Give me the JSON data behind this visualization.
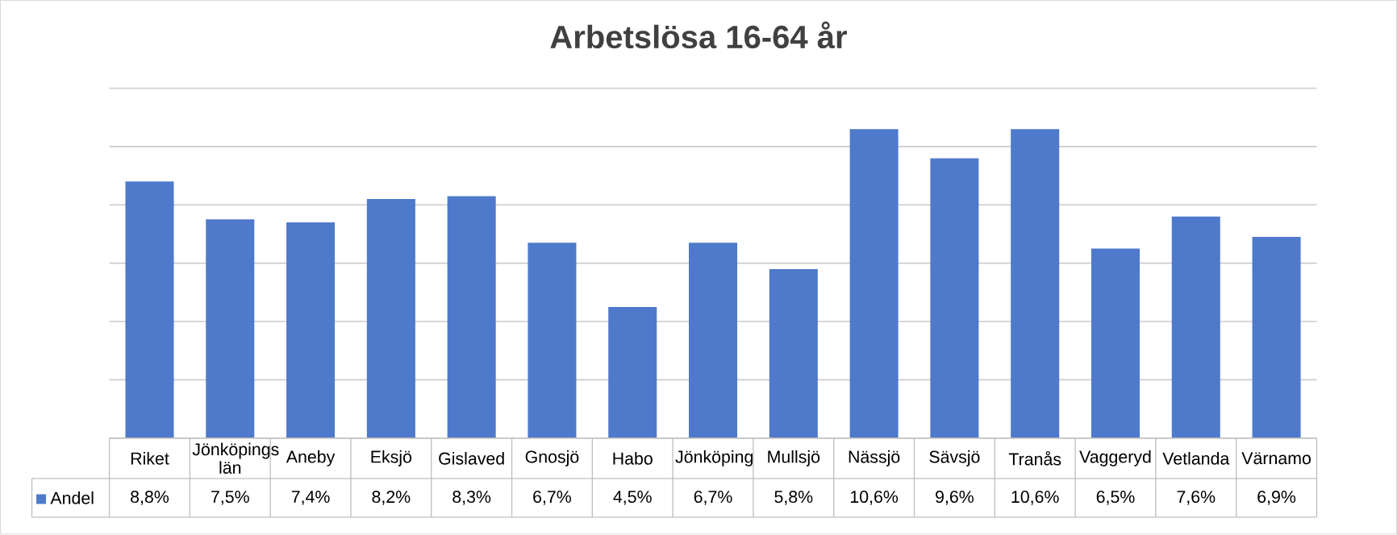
{
  "chart_data": {
    "type": "bar",
    "title": "Arbetslösa 16-64 år",
    "categories": [
      "Riket",
      "Jönköpings län",
      "Aneby",
      "Eksjö",
      "Gislaved",
      "Gnosjö",
      "Habo",
      "Jönköping",
      "Mullsjö",
      "Nässjö",
      "Sävsjö",
      "Tranås",
      "Vaggeryd",
      "Vetlanda",
      "Värnamo"
    ],
    "series": [
      {
        "name": "Andel",
        "color": "#4f7acb",
        "values": [
          8.8,
          7.5,
          7.4,
          8.2,
          8.3,
          6.7,
          4.5,
          6.7,
          5.8,
          10.6,
          9.6,
          10.6,
          6.5,
          7.6,
          6.9
        ],
        "value_labels": [
          "8,8%",
          "7,5%",
          "7,4%",
          "8,2%",
          "8,3%",
          "6,7%",
          "4,5%",
          "6,7%",
          "5,8%",
          "10,6%",
          "9,6%",
          "10,6%",
          "6,5%",
          "7,6%",
          "6,9%"
        ]
      }
    ],
    "ylim": [
      0,
      12
    ],
    "yticks": [
      {
        "value": 0,
        "label": null
      },
      {
        "value": 2,
        "label": null
      },
      {
        "value": 4,
        "label": null
      },
      {
        "value": 6,
        "label": null
      },
      {
        "value": 8,
        "label": null
      },
      {
        "value": 10,
        "label": null
      },
      {
        "value": 12,
        "label": null
      }
    ],
    "grid": "y",
    "legend": "bottom",
    "tick_labels": "x"
  }
}
